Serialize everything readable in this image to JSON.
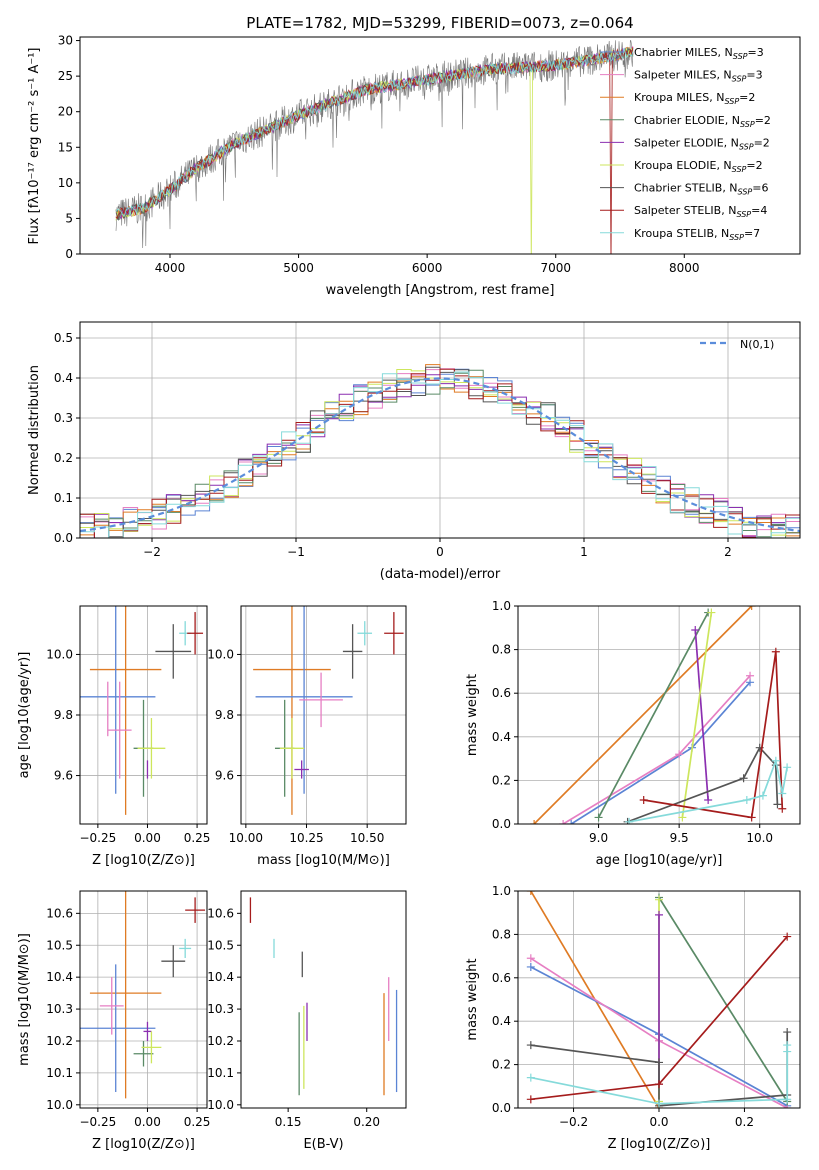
{
  "colors": {
    "Chabrier MILES": "#5b84d4",
    "Salpeter MILES": "#e67fc3",
    "Kroupa MILES": "#df7b24",
    "Chabrier ELODIE": "#5a8a66",
    "Salpeter ELODIE": "#8b2fb0",
    "Kroupa ELODIE": "#cde65c",
    "Chabrier STELIB": "#555555",
    "Salpeter STELIB": "#a51c1c",
    "Kroupa STELIB": "#85dada",
    "normal": "#5b8ddb"
  },
  "chart_data": [
    {
      "id": "spectrum",
      "type": "line",
      "title": "PLATE=1782, MJD=53299, FIBERID=0073, z=0.064",
      "xlabel": "wavelength [Angstrom, rest frame]",
      "ylabel": "Flux [fλ10⁻¹⁷ erg cm⁻² s⁻¹ A⁻¹]",
      "xlim": [
        3300,
        8900
      ],
      "ylim": [
        0,
        30.5
      ],
      "xticks": [
        4000,
        5000,
        6000,
        7000,
        8000
      ],
      "yticks": [
        0,
        5,
        10,
        15,
        20,
        25,
        30
      ],
      "grid": false,
      "legend_position": "right",
      "legend": [
        {
          "name": "Chabrier MILES",
          "nssp": "3"
        },
        {
          "name": "Salpeter MILES",
          "nssp": "3"
        },
        {
          "name": "Kroupa MILES",
          "nssp": "2"
        },
        {
          "name": "Chabrier ELODIE",
          "nssp": "2"
        },
        {
          "name": "Salpeter ELODIE",
          "nssp": "2"
        },
        {
          "name": "Kroupa ELODIE",
          "nssp": "2"
        },
        {
          "name": "Chabrier STELIB",
          "nssp": "6"
        },
        {
          "name": "Salpeter STELIB",
          "nssp": "4"
        },
        {
          "name": "Kroupa STELIB",
          "nssp": "7"
        }
      ],
      "continuum": [
        [
          3580,
          5.5
        ],
        [
          3800,
          6.5
        ],
        [
          4000,
          9
        ],
        [
          4200,
          12
        ],
        [
          4500,
          15.5
        ],
        [
          5000,
          19.5
        ],
        [
          5500,
          23
        ],
        [
          6000,
          24.5
        ],
        [
          6500,
          26
        ],
        [
          7000,
          26.5
        ],
        [
          7500,
          28
        ],
        [
          7600,
          28.5
        ]
      ],
      "dropouts": [
        {
          "model": "Kroupa ELODIE",
          "x": 6810
        },
        {
          "model": "Salpeter STELIB",
          "x": 7430
        }
      ]
    },
    {
      "id": "residuals",
      "type": "histogram",
      "xlabel": "(data-model)/error",
      "ylabel": "Normed distribution",
      "xlim": [
        -2.5,
        2.5
      ],
      "ylim": [
        0,
        0.54
      ],
      "xticks": [
        -2,
        -1,
        0,
        1,
        2
      ],
      "yticks": [
        0.0,
        0.1,
        0.2,
        0.3,
        0.4,
        0.5
      ],
      "grid": true,
      "bin_width": 0.1,
      "legend": [
        {
          "name": "N(0,1)",
          "style": "dashed"
        }
      ],
      "legend_position": "top-right"
    },
    {
      "id": "age-vs-Z",
      "type": "scatter-errorbar",
      "xlabel": "Z [log10(Z/Z⊙)]",
      "ylabel": "age  [log10(age/yr)]",
      "xlim": [
        -0.34,
        0.3
      ],
      "ylim": [
        9.44,
        10.16
      ],
      "xticks": [
        -0.25,
        0.0,
        0.25
      ],
      "yticks": [
        9.6,
        9.8,
        10.0
      ],
      "grid": true,
      "points": [
        {
          "model": "Kroupa MILES",
          "x": -0.11,
          "y": 9.95,
          "xerr": 0.18,
          "yerr": 0.48
        },
        {
          "model": "Chabrier MILES",
          "x": -0.16,
          "y": 9.86,
          "xerr": 0.2,
          "yerr": 0.32
        },
        {
          "model": "Salpeter MILES",
          "x": -0.2,
          "y": 9.82,
          "xerr": 0.0,
          "yerr": 0.09
        },
        {
          "model": "Salpeter MILES",
          "x": -0.14,
          "y": 9.75,
          "xerr": 0.06,
          "yerr": 0.16
        },
        {
          "model": "Chabrier ELODIE",
          "x": -0.02,
          "y": 9.69,
          "xerr": 0.05,
          "yerr": 0.16
        },
        {
          "model": "Kroupa ELODIE",
          "x": 0.02,
          "y": 9.69,
          "xerr": 0.07,
          "yerr": 0.1
        },
        {
          "model": "Salpeter ELODIE",
          "x": 0.0,
          "y": 9.62,
          "xerr": 0.0,
          "yerr": 0.03
        },
        {
          "model": "Chabrier STELIB",
          "x": 0.13,
          "y": 10.01,
          "xerr": 0.09,
          "yerr": 0.09
        },
        {
          "model": "Kroupa STELIB",
          "x": 0.19,
          "y": 10.07,
          "xerr": 0.03,
          "yerr": 0.04
        },
        {
          "model": "Salpeter STELIB",
          "x": 0.24,
          "y": 10.07,
          "xerr": 0.04,
          "yerr": 0.07
        }
      ]
    },
    {
      "id": "age-vs-mass",
      "type": "scatter-errorbar",
      "xlabel": "mass [log10(M/M⊙)]",
      "xlim": [
        9.98,
        10.66
      ],
      "ylim": [
        9.44,
        10.16
      ],
      "xticks": [
        10.0,
        10.25,
        10.5
      ],
      "yticks": [
        9.6,
        9.8,
        10.0
      ],
      "grid": true,
      "points": [
        {
          "model": "Kroupa MILES",
          "x": 10.19,
          "y": 9.95,
          "xerr": 0.16,
          "yerr": 0.48
        },
        {
          "model": "Chabrier MILES",
          "x": 10.24,
          "y": 9.86,
          "xerr": 0.2,
          "yerr": 0.32
        },
        {
          "model": "Salpeter MILES",
          "x": 10.31,
          "y": 9.85,
          "xerr": 0.09,
          "yerr": 0.09
        },
        {
          "model": "Chabrier ELODIE",
          "x": 10.16,
          "y": 9.69,
          "xerr": 0.04,
          "yerr": 0.16
        },
        {
          "model": "Kroupa ELODIE",
          "x": 10.19,
          "y": 9.69,
          "xerr": 0.05,
          "yerr": 0.1
        },
        {
          "model": "Salpeter ELODIE",
          "x": 10.23,
          "y": 9.62,
          "xerr": 0.03,
          "yerr": 0.03
        },
        {
          "model": "Chabrier STELIB",
          "x": 10.44,
          "y": 10.01,
          "xerr": 0.04,
          "yerr": 0.09
        },
        {
          "model": "Kroupa STELIB",
          "x": 10.49,
          "y": 10.07,
          "xerr": 0.03,
          "yerr": 0.04
        },
        {
          "model": "Salpeter STELIB",
          "x": 10.61,
          "y": 10.07,
          "xerr": 0.04,
          "yerr": 0.07
        }
      ]
    },
    {
      "id": "weight-vs-age",
      "type": "line",
      "xlabel": "age  [log10(age/yr)]",
      "ylabel": "mass weight",
      "xlim": [
        8.5,
        10.25
      ],
      "ylim": [
        0.0,
        1.0
      ],
      "xticks": [
        9.0,
        9.5,
        10.0
      ],
      "yticks": [
        0.0,
        0.2,
        0.4,
        0.6,
        0.8,
        1.0
      ],
      "grid": true,
      "series": [
        {
          "model": "Kroupa MILES",
          "x": [
            8.6,
            9.95
          ],
          "y": [
            0.0,
            1.0
          ]
        },
        {
          "model": "Chabrier MILES",
          "x": [
            8.83,
            9.58,
            9.94
          ],
          "y": [
            0.0,
            0.35,
            0.65
          ]
        },
        {
          "model": "Salpeter MILES",
          "x": [
            8.78,
            9.5,
            9.94
          ],
          "y": [
            0.0,
            0.32,
            0.68
          ]
        },
        {
          "model": "Chabrier ELODIE",
          "x": [
            9.0,
            9.68
          ],
          "y": [
            0.03,
            0.97
          ]
        },
        {
          "model": "Salpeter ELODIE",
          "x": [
            9.6,
            9.68
          ],
          "y": [
            0.89,
            0.11
          ]
        },
        {
          "model": "Kroupa ELODIE",
          "x": [
            9.52,
            9.7
          ],
          "y": [
            0.03,
            0.97
          ]
        },
        {
          "model": "Chabrier STELIB",
          "x": [
            9.18,
            9.9,
            10.0,
            10.1,
            10.11
          ],
          "y": [
            0.01,
            0.21,
            0.35,
            0.27,
            0.09
          ]
        },
        {
          "model": "Salpeter STELIB",
          "x": [
            9.28,
            9.95,
            10.1,
            10.14
          ],
          "y": [
            0.11,
            0.03,
            0.79,
            0.07
          ]
        },
        {
          "model": "Kroupa STELIB",
          "x": [
            9.19,
            9.92,
            10.02,
            10.1,
            10.14,
            10.17
          ],
          "y": [
            0.01,
            0.11,
            0.13,
            0.29,
            0.14,
            0.26
          ]
        }
      ]
    },
    {
      "id": "mass-vs-Z",
      "type": "scatter-errorbar",
      "xlabel": "Z [log10(Z/Z⊙)]",
      "ylabel": "mass [log10(M/M⊙)]",
      "xlim": [
        -0.34,
        0.3
      ],
      "ylim": [
        9.99,
        10.67
      ],
      "xticks": [
        -0.25,
        0.0,
        0.25
      ],
      "yticks": [
        10.0,
        10.1,
        10.2,
        10.3,
        10.4,
        10.5,
        10.6
      ],
      "grid": true,
      "points": [
        {
          "model": "Kroupa MILES",
          "x": -0.11,
          "y": 10.35,
          "xerr": 0.18,
          "yerr": 0.33
        },
        {
          "model": "Chabrier MILES",
          "x": -0.16,
          "y": 10.24,
          "xerr": 0.2,
          "yerr": 0.2
        },
        {
          "model": "Salpeter MILES",
          "x": -0.18,
          "y": 10.31,
          "xerr": 0.06,
          "yerr": 0.09
        },
        {
          "model": "Salpeter ELODIE",
          "x": 0.0,
          "y": 10.23,
          "xerr": 0.02,
          "yerr": 0.03
        },
        {
          "model": "Chabrier ELODIE",
          "x": -0.02,
          "y": 10.16,
          "xerr": 0.05,
          "yerr": 0.04
        },
        {
          "model": "Kroupa ELODIE",
          "x": 0.02,
          "y": 10.18,
          "xerr": 0.05,
          "yerr": 0.05
        },
        {
          "model": "Chabrier STELIB",
          "x": 0.13,
          "y": 10.45,
          "xerr": 0.06,
          "yerr": 0.05
        },
        {
          "model": "Kroupa STELIB",
          "x": 0.19,
          "y": 10.49,
          "xerr": 0.03,
          "yerr": 0.03
        },
        {
          "model": "Salpeter STELIB",
          "x": 0.24,
          "y": 10.61,
          "xerr": 0.05,
          "yerr": 0.04
        }
      ]
    },
    {
      "id": "mass-vs-ebv",
      "type": "errorbar",
      "xlabel": "E(B-V)",
      "xlim": [
        0.12,
        0.225
      ],
      "ylim": [
        9.99,
        10.67
      ],
      "xticks": [
        0.15,
        0.2
      ],
      "yticks": [
        10.0,
        10.1,
        10.2,
        10.3,
        10.4,
        10.5,
        10.6
      ],
      "grid": false,
      "points": [
        {
          "model": "Salpeter STELIB",
          "x": 0.126,
          "y": 10.61,
          "yerr": 0.04
        },
        {
          "model": "Kroupa STELIB",
          "x": 0.141,
          "y": 10.49,
          "yerr": 0.03
        },
        {
          "model": "Chabrier STELIB",
          "x": 0.159,
          "y": 10.44,
          "yerr": 0.04
        },
        {
          "model": "Chabrier ELODIE",
          "x": 0.157,
          "y": 10.16,
          "yerr": 0.13
        },
        {
          "model": "Kroupa ELODIE",
          "x": 0.16,
          "y": 10.18,
          "yerr": 0.13
        },
        {
          "model": "Salpeter ELODIE",
          "x": 0.162,
          "y": 10.26,
          "yerr": 0.06
        },
        {
          "model": "Kroupa MILES",
          "x": 0.211,
          "y": 10.19,
          "yerr": 0.16
        },
        {
          "model": "Salpeter MILES",
          "x": 0.214,
          "y": 10.3,
          "yerr": 0.1
        },
        {
          "model": "Chabrier MILES",
          "x": 0.219,
          "y": 10.2,
          "yerr": 0.16
        }
      ]
    },
    {
      "id": "weight-vs-Z",
      "type": "line",
      "xlabel": "Z [log10(Z/Z⊙)]",
      "ylabel": "mass weight",
      "xlim": [
        -0.33,
        0.33
      ],
      "ylim": [
        0.0,
        1.0
      ],
      "xticks": [
        -0.2,
        0.0,
        0.2
      ],
      "yticks": [
        0.0,
        0.2,
        0.4,
        0.6,
        0.8,
        1.0
      ],
      "grid": true,
      "series": [
        {
          "model": "Kroupa MILES",
          "x": [
            -0.3,
            0.0
          ],
          "y": [
            1.0,
            0.0
          ]
        },
        {
          "model": "Chabrier MILES",
          "x": [
            -0.3,
            0.0,
            0.3
          ],
          "y": [
            0.65,
            0.34,
            0.01
          ]
        },
        {
          "model": "Salpeter MILES",
          "x": [
            -0.3,
            0.0,
            0.3
          ],
          "y": [
            0.69,
            0.31,
            0.0
          ]
        },
        {
          "model": "Chabrier ELODIE",
          "x": [
            0.0,
            0.3
          ],
          "y": [
            0.97,
            0.03
          ]
        },
        {
          "model": "Kroupa ELODIE",
          "x": [
            0.0,
            0.0
          ],
          "y": [
            0.03,
            0.96
          ]
        },
        {
          "model": "Salpeter ELODIE",
          "x": [
            0.0,
            0.0
          ],
          "y": [
            0.89,
            0.11
          ]
        },
        {
          "model": "Chabrier STELIB",
          "x": [
            -0.3,
            0.0,
            0.0,
            0.3,
            0.3
          ],
          "y": [
            0.29,
            0.21,
            0.01,
            0.06,
            0.35
          ]
        },
        {
          "model": "Salpeter STELIB",
          "x": [
            -0.3,
            0.0,
            0.3
          ],
          "y": [
            0.04,
            0.11,
            0.79
          ]
        },
        {
          "model": "Kroupa STELIB",
          "x": [
            -0.3,
            0.0,
            0.3,
            0.3,
            0.3
          ],
          "y": [
            0.14,
            0.02,
            0.04,
            0.29,
            0.26
          ]
        }
      ]
    }
  ]
}
